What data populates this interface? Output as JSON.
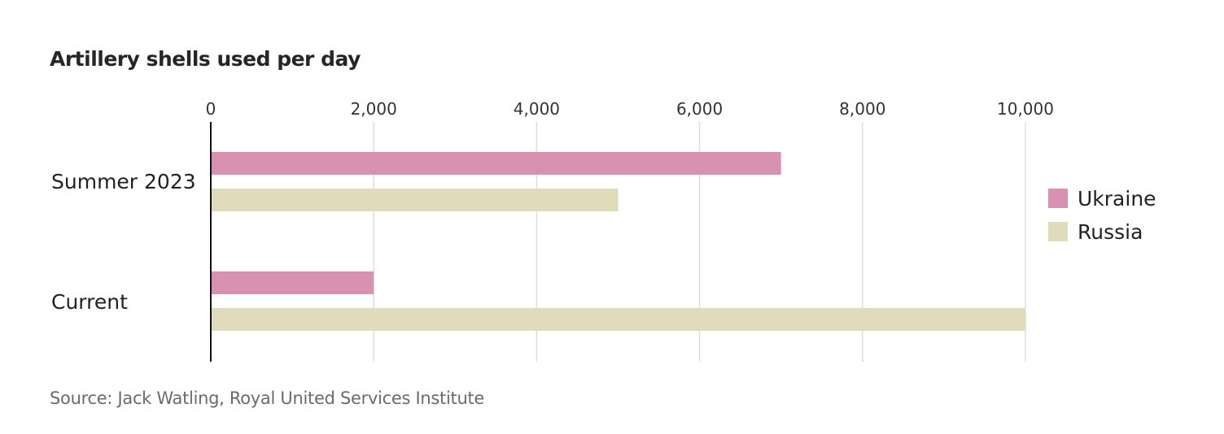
{
  "chart_data": {
    "type": "bar",
    "orientation": "horizontal",
    "title": "Artillery shells used per day",
    "source": "Source: Jack Watling, Royal United Services Institute",
    "categories": [
      "Summer 2023",
      "Current"
    ],
    "series": [
      {
        "name": "Ukraine",
        "values": [
          7000,
          2000
        ],
        "color": "#d991b2"
      },
      {
        "name": "Russia",
        "values": [
          5000,
          10000
        ],
        "color": "#dfdbbb"
      }
    ],
    "xlim": [
      0,
      10000
    ],
    "xticks": [
      {
        "value": 0,
        "label": "0"
      },
      {
        "value": 2000,
        "label": "2,000"
      },
      {
        "value": 4000,
        "label": "4,000"
      },
      {
        "value": 6000,
        "label": "6,000"
      },
      {
        "value": 8000,
        "label": "8,000"
      },
      {
        "value": 10000,
        "label": "10,000"
      }
    ],
    "grid": true,
    "legend_position": "right"
  }
}
